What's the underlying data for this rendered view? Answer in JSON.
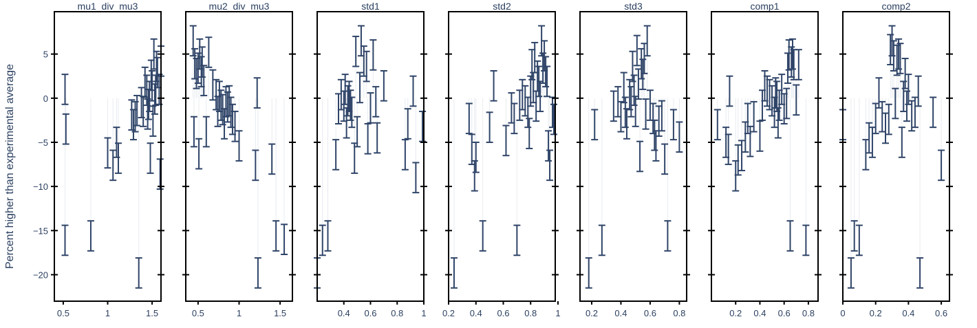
{
  "figure": {
    "ylabel": "Percent higher than experimental average",
    "y_range": [
      -23,
      9.8
    ],
    "y_ticks": [
      -20,
      -15,
      -10,
      -5,
      0,
      5
    ],
    "colors": {
      "errorbar": "#2f4468",
      "frame": "#000000",
      "stem": "#e7ebf0",
      "text": "#2a3f5f"
    }
  },
  "chart_data": [
    {
      "type": "scatter",
      "title": "mu1_div_mu3",
      "xlim": [
        0.4,
        1.6
      ],
      "x_ticks": [
        0.5,
        1,
        1.5
      ],
      "points": [
        {
          "x": 0.52,
          "y": 1.0
        },
        {
          "x": 0.53,
          "y": -3.5
        },
        {
          "x": 0.52,
          "y": -16.1
        },
        {
          "x": 0.81,
          "y": -15.6
        },
        {
          "x": 1.0,
          "y": -6.2
        },
        {
          "x": 1.06,
          "y": -7.6
        },
        {
          "x": 1.1,
          "y": -5.0
        },
        {
          "x": 1.12,
          "y": -6.8
        },
        {
          "x": 1.27,
          "y": -1.9
        },
        {
          "x": 1.29,
          "y": -3.0
        },
        {
          "x": 1.31,
          "y": -2.1
        },
        {
          "x": 1.33,
          "y": -1.4
        },
        {
          "x": 1.35,
          "y": -19.8
        },
        {
          "x": 1.38,
          "y": -0.5
        },
        {
          "x": 1.4,
          "y": -1.5
        },
        {
          "x": 1.42,
          "y": 1.8
        },
        {
          "x": 1.44,
          "y": 0.9
        },
        {
          "x": 1.45,
          "y": -1.8
        },
        {
          "x": 1.46,
          "y": -0.7
        },
        {
          "x": 1.47,
          "y": 0.2
        },
        {
          "x": 1.48,
          "y": -6.8
        },
        {
          "x": 1.49,
          "y": 2.6
        },
        {
          "x": 1.5,
          "y": 1.4
        },
        {
          "x": 1.51,
          "y": -2.6
        },
        {
          "x": 1.52,
          "y": 5.0
        },
        {
          "x": 1.53,
          "y": -0.1
        },
        {
          "x": 1.54,
          "y": 0.9
        },
        {
          "x": 1.55,
          "y": 3.6
        },
        {
          "x": 1.56,
          "y": 2.9
        },
        {
          "x": 1.58,
          "y": 1.0
        },
        {
          "x": 1.59,
          "y": -8.6
        },
        {
          "x": 1.6,
          "y": 4.2
        }
      ]
    },
    {
      "type": "scatter",
      "title": "mu2_div_mu3",
      "xlim": [
        0.35,
        1.65
      ],
      "x_ticks": [
        0.5,
        1,
        1.5
      ],
      "points": [
        {
          "x": 0.44,
          "y": 6.5
        },
        {
          "x": 0.45,
          "y": -3.8
        },
        {
          "x": 0.46,
          "y": 3.9
        },
        {
          "x": 0.48,
          "y": 2.8
        },
        {
          "x": 0.5,
          "y": 3.4
        },
        {
          "x": 0.51,
          "y": -6.3
        },
        {
          "x": 0.52,
          "y": 5.0
        },
        {
          "x": 0.54,
          "y": 3.0
        },
        {
          "x": 0.55,
          "y": 4.1
        },
        {
          "x": 0.57,
          "y": 2.0
        },
        {
          "x": 0.6,
          "y": -3.8
        },
        {
          "x": 0.63,
          "y": 5.2
        },
        {
          "x": 0.68,
          "y": 1.5
        },
        {
          "x": 0.72,
          "y": 0.4
        },
        {
          "x": 0.74,
          "y": -1.5
        },
        {
          "x": 0.76,
          "y": 0.2
        },
        {
          "x": 0.78,
          "y": -0.8
        },
        {
          "x": 0.8,
          "y": -1.3
        },
        {
          "x": 0.82,
          "y": -2.9
        },
        {
          "x": 0.84,
          "y": -0.4
        },
        {
          "x": 0.86,
          "y": -1.0
        },
        {
          "x": 0.88,
          "y": -0.3
        },
        {
          "x": 0.9,
          "y": -1.6
        },
        {
          "x": 0.92,
          "y": -2.4
        },
        {
          "x": 0.95,
          "y": -3.2
        },
        {
          "x": 1.0,
          "y": -5.4
        },
        {
          "x": 1.2,
          "y": -7.6
        },
        {
          "x": 1.22,
          "y": 0.6
        },
        {
          "x": 1.23,
          "y": -19.8
        },
        {
          "x": 1.4,
          "y": -6.9
        },
        {
          "x": 1.45,
          "y": -15.6
        },
        {
          "x": 1.55,
          "y": -16.0
        }
      ]
    },
    {
      "type": "scatter",
      "title": "std1",
      "xlim": [
        0.2,
        1.0
      ],
      "x_ticks": [
        0.4,
        0.6,
        0.8,
        1
      ],
      "points": [
        {
          "x": 0.2,
          "y": -19.8
        },
        {
          "x": 0.24,
          "y": -16.1
        },
        {
          "x": 0.28,
          "y": -15.6
        },
        {
          "x": 0.34,
          "y": -6.4
        },
        {
          "x": 0.36,
          "y": -1.2
        },
        {
          "x": 0.38,
          "y": 0.4
        },
        {
          "x": 0.4,
          "y": -0.9
        },
        {
          "x": 0.41,
          "y": 1.0
        },
        {
          "x": 0.42,
          "y": -2.8
        },
        {
          "x": 0.43,
          "y": -0.3
        },
        {
          "x": 0.44,
          "y": 0.2
        },
        {
          "x": 0.45,
          "y": -0.8
        },
        {
          "x": 0.46,
          "y": -1.6
        },
        {
          "x": 0.48,
          "y": -6.8
        },
        {
          "x": 0.49,
          "y": 5.3
        },
        {
          "x": 0.5,
          "y": -3.8
        },
        {
          "x": 0.52,
          "y": 1.2
        },
        {
          "x": 0.53,
          "y": 6.5
        },
        {
          "x": 0.55,
          "y": 4.2
        },
        {
          "x": 0.57,
          "y": 3.6
        },
        {
          "x": 0.58,
          "y": -4.6
        },
        {
          "x": 0.6,
          "y": -1.1
        },
        {
          "x": 0.62,
          "y": 4.9
        },
        {
          "x": 0.64,
          "y": -0.4
        },
        {
          "x": 0.65,
          "y": -4.5
        },
        {
          "x": 0.7,
          "y": 1.4
        },
        {
          "x": 0.86,
          "y": -6.4
        },
        {
          "x": 0.88,
          "y": -2.9
        },
        {
          "x": 0.92,
          "y": 0.8
        },
        {
          "x": 0.94,
          "y": -9.0
        },
        {
          "x": 0.99,
          "y": -3.2
        }
      ]
    },
    {
      "type": "scatter",
      "title": "std2",
      "xlim": [
        0.2,
        0.98
      ],
      "x_ticks": [
        0.2,
        0.4,
        0.6,
        0.8,
        1
      ],
      "points": [
        {
          "x": 0.24,
          "y": -19.8
        },
        {
          "x": 0.35,
          "y": -2.3
        },
        {
          "x": 0.37,
          "y": -5.8
        },
        {
          "x": 0.39,
          "y": -8.8
        },
        {
          "x": 0.4,
          "y": -6.7
        },
        {
          "x": 0.45,
          "y": -15.6
        },
        {
          "x": 0.5,
          "y": -3.3
        },
        {
          "x": 0.53,
          "y": 1.4
        },
        {
          "x": 0.62,
          "y": -4.8
        },
        {
          "x": 0.66,
          "y": -1.1
        },
        {
          "x": 0.68,
          "y": -2.3
        },
        {
          "x": 0.7,
          "y": -16.1
        },
        {
          "x": 0.72,
          "y": -0.8
        },
        {
          "x": 0.74,
          "y": 0.4
        },
        {
          "x": 0.76,
          "y": -0.3
        },
        {
          "x": 0.78,
          "y": -1.6
        },
        {
          "x": 0.79,
          "y": -4.0
        },
        {
          "x": 0.8,
          "y": 0.8
        },
        {
          "x": 0.81,
          "y": 3.8
        },
        {
          "x": 0.82,
          "y": 1.2
        },
        {
          "x": 0.83,
          "y": 4.6
        },
        {
          "x": 0.84,
          "y": -0.9
        },
        {
          "x": 0.85,
          "y": 2.5
        },
        {
          "x": 0.86,
          "y": 1.9
        },
        {
          "x": 0.87,
          "y": 0.2
        },
        {
          "x": 0.88,
          "y": 6.5
        },
        {
          "x": 0.89,
          "y": 3.4
        },
        {
          "x": 0.9,
          "y": 4.8
        },
        {
          "x": 0.91,
          "y": 3.0
        },
        {
          "x": 0.92,
          "y": 1.9
        },
        {
          "x": 0.93,
          "y": -5.4
        },
        {
          "x": 0.94,
          "y": -7.6
        },
        {
          "x": 0.96,
          "y": -1.6
        },
        {
          "x": 0.97,
          "y": -2.4
        }
      ]
    },
    {
      "type": "scatter",
      "title": "std3",
      "xlim": [
        0.12,
        0.85
      ],
      "x_ticks": [
        0.2,
        0.4,
        0.6,
        0.8
      ],
      "points": [
        {
          "x": 0.18,
          "y": -19.8
        },
        {
          "x": 0.22,
          "y": -3.0
        },
        {
          "x": 0.27,
          "y": -16.1
        },
        {
          "x": 0.35,
          "y": -0.9
        },
        {
          "x": 0.38,
          "y": -0.4
        },
        {
          "x": 0.4,
          "y": -2.1
        },
        {
          "x": 0.42,
          "y": 1.2
        },
        {
          "x": 0.43,
          "y": -1.6
        },
        {
          "x": 0.44,
          "y": -2.9
        },
        {
          "x": 0.46,
          "y": 0.4
        },
        {
          "x": 0.47,
          "y": -0.4
        },
        {
          "x": 0.48,
          "y": 3.6
        },
        {
          "x": 0.49,
          "y": 0.9
        },
        {
          "x": 0.5,
          "y": -1.5
        },
        {
          "x": 0.51,
          "y": 5.4
        },
        {
          "x": 0.52,
          "y": 1.6
        },
        {
          "x": 0.53,
          "y": -6.6
        },
        {
          "x": 0.54,
          "y": 3.9
        },
        {
          "x": 0.55,
          "y": 2.7
        },
        {
          "x": 0.56,
          "y": 4.5
        },
        {
          "x": 0.57,
          "y": -1.8
        },
        {
          "x": 0.58,
          "y": 6.5
        },
        {
          "x": 0.6,
          "y": -0.8
        },
        {
          "x": 0.62,
          "y": -2.3
        },
        {
          "x": 0.63,
          "y": -4.2
        },
        {
          "x": 0.64,
          "y": -5.4
        },
        {
          "x": 0.66,
          "y": -2.6
        },
        {
          "x": 0.68,
          "y": -2.0
        },
        {
          "x": 0.7,
          "y": -6.9
        },
        {
          "x": 0.72,
          "y": -15.6
        },
        {
          "x": 0.76,
          "y": -3.0
        },
        {
          "x": 0.8,
          "y": -4.4
        }
      ]
    },
    {
      "type": "scatter",
      "title": "comp1",
      "xlim": [
        0.0,
        0.88
      ],
      "x_ticks": [
        0.2,
        0.4,
        0.6,
        0.8
      ],
      "points": [
        {
          "x": 0.05,
          "y": -3.0
        },
        {
          "x": 0.12,
          "y": -5.0
        },
        {
          "x": 0.14,
          "y": -5.8
        },
        {
          "x": 0.15,
          "y": 0.8
        },
        {
          "x": 0.2,
          "y": -8.8
        },
        {
          "x": 0.22,
          "y": -7.0
        },
        {
          "x": 0.25,
          "y": -6.5
        },
        {
          "x": 0.28,
          "y": -4.4
        },
        {
          "x": 0.3,
          "y": -2.3
        },
        {
          "x": 0.32,
          "y": -4.9
        },
        {
          "x": 0.35,
          "y": -2.1
        },
        {
          "x": 0.4,
          "y": -4.3
        },
        {
          "x": 0.42,
          "y": -0.8
        },
        {
          "x": 0.44,
          "y": 1.4
        },
        {
          "x": 0.46,
          "y": 0.8
        },
        {
          "x": 0.48,
          "y": 0.4
        },
        {
          "x": 0.5,
          "y": -0.3
        },
        {
          "x": 0.52,
          "y": -1.6
        },
        {
          "x": 0.53,
          "y": 0.6
        },
        {
          "x": 0.54,
          "y": 0.2
        },
        {
          "x": 0.55,
          "y": -2.8
        },
        {
          "x": 0.56,
          "y": -0.8
        },
        {
          "x": 0.58,
          "y": 1.0
        },
        {
          "x": 0.6,
          "y": -1.2
        },
        {
          "x": 0.62,
          "y": -0.6
        },
        {
          "x": 0.63,
          "y": 3.4
        },
        {
          "x": 0.64,
          "y": 4.9
        },
        {
          "x": 0.65,
          "y": -15.6
        },
        {
          "x": 0.66,
          "y": 4.1
        },
        {
          "x": 0.67,
          "y": 5.0
        },
        {
          "x": 0.68,
          "y": 3.8
        },
        {
          "x": 0.7,
          "y": -0.2
        },
        {
          "x": 0.72,
          "y": 3.8
        },
        {
          "x": 0.78,
          "y": -16.1
        }
      ]
    },
    {
      "type": "scatter",
      "title": "comp2",
      "xlim": [
        0.0,
        0.65
      ],
      "x_ticks": [
        0,
        0.2,
        0.4,
        0.6
      ],
      "points": [
        {
          "x": 0.0,
          "y": -3.0
        },
        {
          "x": 0.05,
          "y": -19.8
        },
        {
          "x": 0.07,
          "y": -15.6
        },
        {
          "x": 0.1,
          "y": -16.1
        },
        {
          "x": 0.14,
          "y": -6.4
        },
        {
          "x": 0.16,
          "y": -4.5
        },
        {
          "x": 0.18,
          "y": -5.0
        },
        {
          "x": 0.2,
          "y": -2.3
        },
        {
          "x": 0.22,
          "y": 0.6
        },
        {
          "x": 0.24,
          "y": -2.1
        },
        {
          "x": 0.26,
          "y": -3.4
        },
        {
          "x": 0.28,
          "y": -2.4
        },
        {
          "x": 0.29,
          "y": 5.5
        },
        {
          "x": 0.3,
          "y": 6.5
        },
        {
          "x": 0.31,
          "y": 4.8
        },
        {
          "x": 0.32,
          "y": -0.6
        },
        {
          "x": 0.33,
          "y": 4.3
        },
        {
          "x": 0.34,
          "y": 5.0
        },
        {
          "x": 0.35,
          "y": 4.5
        },
        {
          "x": 0.36,
          "y": -5.0
        },
        {
          "x": 0.37,
          "y": 0.2
        },
        {
          "x": 0.38,
          "y": 2.8
        },
        {
          "x": 0.39,
          "y": -0.9
        },
        {
          "x": 0.4,
          "y": 1.0
        },
        {
          "x": 0.42,
          "y": -2.0
        },
        {
          "x": 0.44,
          "y": -1.6
        },
        {
          "x": 0.46,
          "y": 0.8
        },
        {
          "x": 0.47,
          "y": -19.8
        },
        {
          "x": 0.55,
          "y": -1.6
        },
        {
          "x": 0.6,
          "y": -7.6
        }
      ]
    }
  ]
}
